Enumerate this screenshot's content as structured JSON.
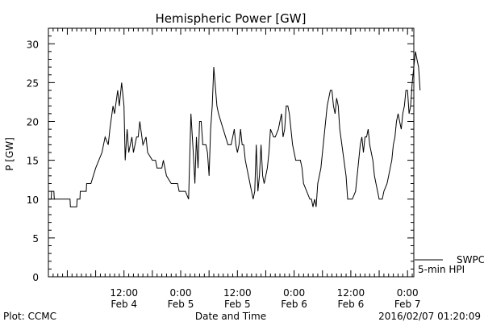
{
  "chart_data": {
    "type": "line",
    "title": "Hemispheric Power [GW]",
    "ylabel": "P [GW]",
    "xlabel": "Date and Time",
    "ylim": [
      0,
      32
    ],
    "yticks": [
      0,
      5,
      10,
      15,
      20,
      25,
      30
    ],
    "xlim": [
      "2016-02-03T20:00",
      "2016-02-07T01:20"
    ],
    "xticks": [
      {
        "t": "2016-02-04T12:00",
        "line1": "12:00",
        "line2": "Feb 4"
      },
      {
        "t": "2016-02-05T00:00",
        "line1": "0:00",
        "line2": "Feb 5"
      },
      {
        "t": "2016-02-05T12:00",
        "line1": "12:00",
        "line2": "Feb 5"
      },
      {
        "t": "2016-02-06T00:00",
        "line1": "0:00",
        "line2": "Feb 6"
      },
      {
        "t": "2016-02-06T12:00",
        "line1": "12:00",
        "line2": "Feb 6"
      },
      {
        "t": "2016-02-07T00:00",
        "line1": "0:00",
        "line2": "Feb 7"
      }
    ],
    "grid": false,
    "color": "#000000",
    "series": [
      {
        "legend": "SWPC",
        "points": [
          [
            "2016-02-03T20:00",
            10
          ],
          [
            "2016-02-03T20:35",
            10
          ],
          [
            "2016-02-03T20:40",
            11
          ],
          [
            "2016-02-03T21:10",
            11
          ],
          [
            "2016-02-03T21:15",
            10
          ],
          [
            "2016-02-04T00:35",
            10
          ],
          [
            "2016-02-04T00:40",
            9
          ],
          [
            "2016-02-04T02:00",
            9
          ],
          [
            "2016-02-04T02:05",
            10
          ],
          [
            "2016-02-04T02:40",
            10
          ],
          [
            "2016-02-04T02:45",
            11
          ],
          [
            "2016-02-04T04:00",
            11
          ],
          [
            "2016-02-04T04:05",
            12
          ],
          [
            "2016-02-04T05:00",
            12
          ],
          [
            "2016-02-04T06:00",
            14
          ],
          [
            "2016-02-04T07:20",
            16
          ],
          [
            "2016-02-04T08:00",
            18
          ],
          [
            "2016-02-04T08:40",
            17
          ],
          [
            "2016-02-04T09:00",
            19
          ],
          [
            "2016-02-04T09:40",
            22
          ],
          [
            "2016-02-04T10:00",
            21
          ],
          [
            "2016-02-04T10:40",
            24
          ],
          [
            "2016-02-04T11:00",
            22
          ],
          [
            "2016-02-04T11:30",
            25
          ],
          [
            "2016-02-04T12:00",
            22
          ],
          [
            "2016-02-04T12:15",
            15
          ],
          [
            "2016-02-04T12:40",
            19
          ],
          [
            "2016-02-04T13:00",
            16
          ],
          [
            "2016-02-04T13:40",
            18
          ],
          [
            "2016-02-04T14:00",
            16
          ],
          [
            "2016-02-04T14:40",
            18
          ],
          [
            "2016-02-04T15:00",
            18
          ],
          [
            "2016-02-04T15:20",
            20
          ],
          [
            "2016-02-04T16:00",
            17
          ],
          [
            "2016-02-04T16:40",
            18
          ],
          [
            "2016-02-04T17:00",
            16
          ],
          [
            "2016-02-04T18:00",
            15
          ],
          [
            "2016-02-04T18:40",
            15
          ],
          [
            "2016-02-04T19:00",
            14
          ],
          [
            "2016-02-04T20:00",
            14
          ],
          [
            "2016-02-04T20:20",
            15
          ],
          [
            "2016-02-04T21:00",
            13
          ],
          [
            "2016-02-04T22:00",
            12
          ],
          [
            "2016-02-04T23:20",
            12
          ],
          [
            "2016-02-04T23:40",
            11
          ],
          [
            "2016-02-05T01:00",
            11
          ],
          [
            "2016-02-05T01:40",
            10
          ],
          [
            "2016-02-05T02:10",
            21
          ],
          [
            "2016-02-05T02:40",
            16
          ],
          [
            "2016-02-05T03:00",
            12
          ],
          [
            "2016-02-05T03:20",
            18
          ],
          [
            "2016-02-05T03:40",
            14
          ],
          [
            "2016-02-05T04:00",
            20
          ],
          [
            "2016-02-05T04:20",
            20
          ],
          [
            "2016-02-05T04:40",
            17
          ],
          [
            "2016-02-05T05:20",
            17
          ],
          [
            "2016-02-05T05:40",
            16
          ],
          [
            "2016-02-05T06:00",
            13
          ],
          [
            "2016-02-05T06:20",
            19
          ],
          [
            "2016-02-05T06:40",
            22
          ],
          [
            "2016-02-05T07:00",
            27
          ],
          [
            "2016-02-05T07:40",
            22
          ],
          [
            "2016-02-05T08:00",
            21
          ],
          [
            "2016-02-05T09:00",
            19
          ],
          [
            "2016-02-05T09:30",
            18
          ],
          [
            "2016-02-05T10:00",
            17
          ],
          [
            "2016-02-05T10:40",
            17
          ],
          [
            "2016-02-05T11:00",
            18
          ],
          [
            "2016-02-05T11:20",
            19
          ],
          [
            "2016-02-05T11:40",
            17
          ],
          [
            "2016-02-05T12:00",
            16
          ],
          [
            "2016-02-05T12:20",
            17
          ],
          [
            "2016-02-05T12:40",
            19
          ],
          [
            "2016-02-05T13:00",
            17
          ],
          [
            "2016-02-05T13:20",
            17
          ],
          [
            "2016-02-05T13:40",
            15
          ],
          [
            "2016-02-05T14:40",
            12
          ],
          [
            "2016-02-05T15:20",
            10
          ],
          [
            "2016-02-05T15:40",
            11
          ],
          [
            "2016-02-05T16:00",
            17
          ],
          [
            "2016-02-05T16:20",
            11
          ],
          [
            "2016-02-05T16:40",
            13
          ],
          [
            "2016-02-05T17:00",
            17
          ],
          [
            "2016-02-05T17:20",
            13
          ],
          [
            "2016-02-05T17:40",
            12
          ],
          [
            "2016-02-05T18:20",
            14
          ],
          [
            "2016-02-05T18:40",
            16
          ],
          [
            "2016-02-05T19:00",
            19
          ],
          [
            "2016-02-05T19:40",
            18
          ],
          [
            "2016-02-05T20:00",
            18
          ],
          [
            "2016-02-05T20:40",
            19
          ],
          [
            "2016-02-05T21:00",
            20
          ],
          [
            "2016-02-05T21:20",
            21
          ],
          [
            "2016-02-05T21:40",
            18
          ],
          [
            "2016-02-05T22:00",
            19
          ],
          [
            "2016-02-05T22:20",
            22
          ],
          [
            "2016-02-05T22:40",
            22
          ],
          [
            "2016-02-05T23:00",
            21
          ],
          [
            "2016-02-05T23:40",
            17
          ],
          [
            "2016-02-06T00:20",
            15
          ],
          [
            "2016-02-06T01:20",
            15
          ],
          [
            "2016-02-06T01:40",
            14
          ],
          [
            "2016-02-06T02:00",
            12
          ],
          [
            "2016-02-06T02:40",
            11
          ],
          [
            "2016-02-06T03:20",
            10
          ],
          [
            "2016-02-06T03:40",
            10
          ],
          [
            "2016-02-06T04:00",
            9
          ],
          [
            "2016-02-06T04:20",
            10
          ],
          [
            "2016-02-06T04:40",
            9
          ],
          [
            "2016-02-06T05:00",
            12
          ],
          [
            "2016-02-06T05:40",
            14
          ],
          [
            "2016-02-06T06:20",
            18
          ],
          [
            "2016-02-06T07:00",
            22
          ],
          [
            "2016-02-06T07:40",
            24
          ],
          [
            "2016-02-06T08:00",
            24
          ],
          [
            "2016-02-06T08:20",
            22
          ],
          [
            "2016-02-06T08:40",
            21
          ],
          [
            "2016-02-06T09:00",
            23
          ],
          [
            "2016-02-06T09:20",
            22
          ],
          [
            "2016-02-06T09:40",
            19
          ],
          [
            "2016-02-06T10:20",
            16
          ],
          [
            "2016-02-06T11:00",
            13
          ],
          [
            "2016-02-06T11:20",
            10
          ],
          [
            "2016-02-06T12:20",
            10
          ],
          [
            "2016-02-06T13:00",
            11
          ],
          [
            "2016-02-06T13:40",
            15
          ],
          [
            "2016-02-06T14:00",
            17
          ],
          [
            "2016-02-06T14:20",
            18
          ],
          [
            "2016-02-06T14:40",
            16
          ],
          [
            "2016-02-06T15:00",
            18
          ],
          [
            "2016-02-06T15:20",
            18
          ],
          [
            "2016-02-06T15:40",
            19
          ],
          [
            "2016-02-06T16:00",
            17
          ],
          [
            "2016-02-06T16:40",
            15
          ],
          [
            "2016-02-06T17:00",
            13
          ],
          [
            "2016-02-06T17:20",
            12
          ],
          [
            "2016-02-06T17:40",
            11
          ],
          [
            "2016-02-06T18:00",
            10
          ],
          [
            "2016-02-06T18:40",
            10
          ],
          [
            "2016-02-06T19:00",
            11
          ],
          [
            "2016-02-06T19:40",
            12
          ],
          [
            "2016-02-06T20:00",
            13
          ],
          [
            "2016-02-06T20:20",
            14
          ],
          [
            "2016-02-06T20:40",
            15
          ],
          [
            "2016-02-06T21:00",
            17
          ],
          [
            "2016-02-06T21:20",
            18
          ],
          [
            "2016-02-06T21:40",
            20
          ],
          [
            "2016-02-06T22:00",
            21
          ],
          [
            "2016-02-06T22:20",
            20
          ],
          [
            "2016-02-06T22:40",
            19
          ],
          [
            "2016-02-06T23:00",
            21
          ],
          [
            "2016-02-06T23:20",
            22
          ],
          [
            "2016-02-06T23:40",
            24
          ],
          [
            "2016-02-07T00:00",
            24
          ],
          [
            "2016-02-07T00:20",
            21
          ],
          [
            "2016-02-07T00:40",
            22
          ],
          [
            "2016-02-07T01:00",
            25
          ],
          [
            "2016-02-07T01:20",
            27
          ],
          [
            "2016-02-07T01:40",
            29
          ],
          [
            "2016-02-07T02:00",
            28
          ],
          [
            "2016-02-07T02:20",
            27
          ],
          [
            "2016-02-07T02:40",
            24
          ]
        ]
      },
      {
        "legend": "5-min HPI",
        "points": []
      }
    ]
  },
  "footer": {
    "left": "Plot: CCMC",
    "right": "2016/02/07 01:20:09"
  }
}
